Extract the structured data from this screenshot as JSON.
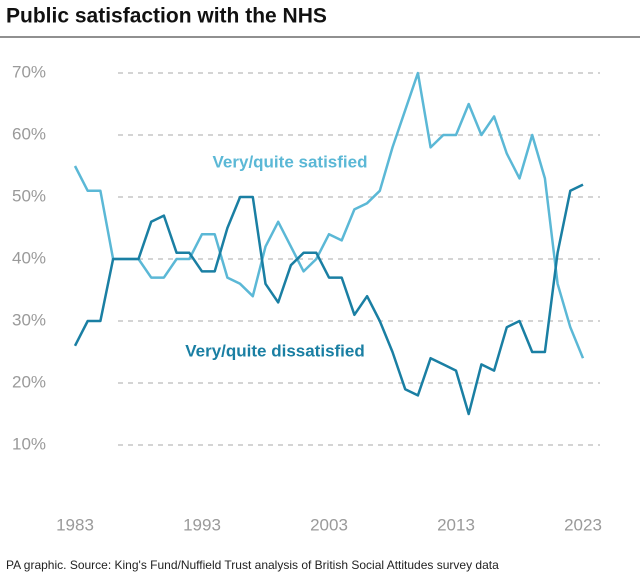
{
  "chart_data": {
    "type": "line",
    "title": "Public satisfaction with the NHS",
    "source": "PA graphic. Source: King's Fund/Nuffield Trust analysis of British Social Attitudes survey data",
    "x": [
      1983,
      1984,
      1985,
      1986,
      1987,
      1988,
      1989,
      1990,
      1991,
      1992,
      1993,
      1994,
      1995,
      1996,
      1997,
      1998,
      1999,
      2000,
      2001,
      2002,
      2003,
      2004,
      2005,
      2006,
      2007,
      2008,
      2009,
      2010,
      2011,
      2012,
      2013,
      2014,
      2015,
      2016,
      2017,
      2018,
      2019,
      2020,
      2021,
      2022,
      2023
    ],
    "series": [
      {
        "name": "Very/quite satisfied",
        "color": "#5bb8d6",
        "values": [
          55,
          51,
          51,
          40,
          40,
          40,
          37,
          37,
          40,
          40,
          44,
          44,
          37,
          36,
          34,
          42,
          46,
          42,
          38,
          40,
          44,
          43,
          48,
          49,
          51,
          58,
          64,
          70,
          58,
          60,
          60,
          65,
          60,
          63,
          57,
          53,
          60,
          53,
          36,
          29,
          24
        ]
      },
      {
        "name": "Very/quite dissatisfied",
        "color": "#1a7fa3",
        "values": [
          26,
          30,
          30,
          40,
          40,
          40,
          46,
          47,
          41,
          41,
          38,
          38,
          45,
          50,
          50,
          36,
          33,
          39,
          41,
          41,
          37,
          37,
          31,
          34,
          30,
          25,
          19,
          18,
          24,
          23,
          22,
          15,
          23,
          22,
          29,
          30,
          25,
          25,
          41,
          51,
          52
        ]
      }
    ],
    "xlim": [
      1983,
      2023
    ],
    "xticks": [
      1983,
      1993,
      2003,
      2013,
      2023
    ],
    "ylim": [
      0,
      70
    ],
    "yticks": [
      {
        "value": 10,
        "label": "10%"
      },
      {
        "value": 20,
        "label": "20%"
      },
      {
        "value": 30,
        "label": "30%"
      },
      {
        "value": 40,
        "label": "40%"
      },
      {
        "value": 50,
        "label": "50%"
      },
      {
        "value": 60,
        "label": "60%"
      },
      {
        "value": 70,
        "label": "70%"
      }
    ],
    "grid": true
  }
}
